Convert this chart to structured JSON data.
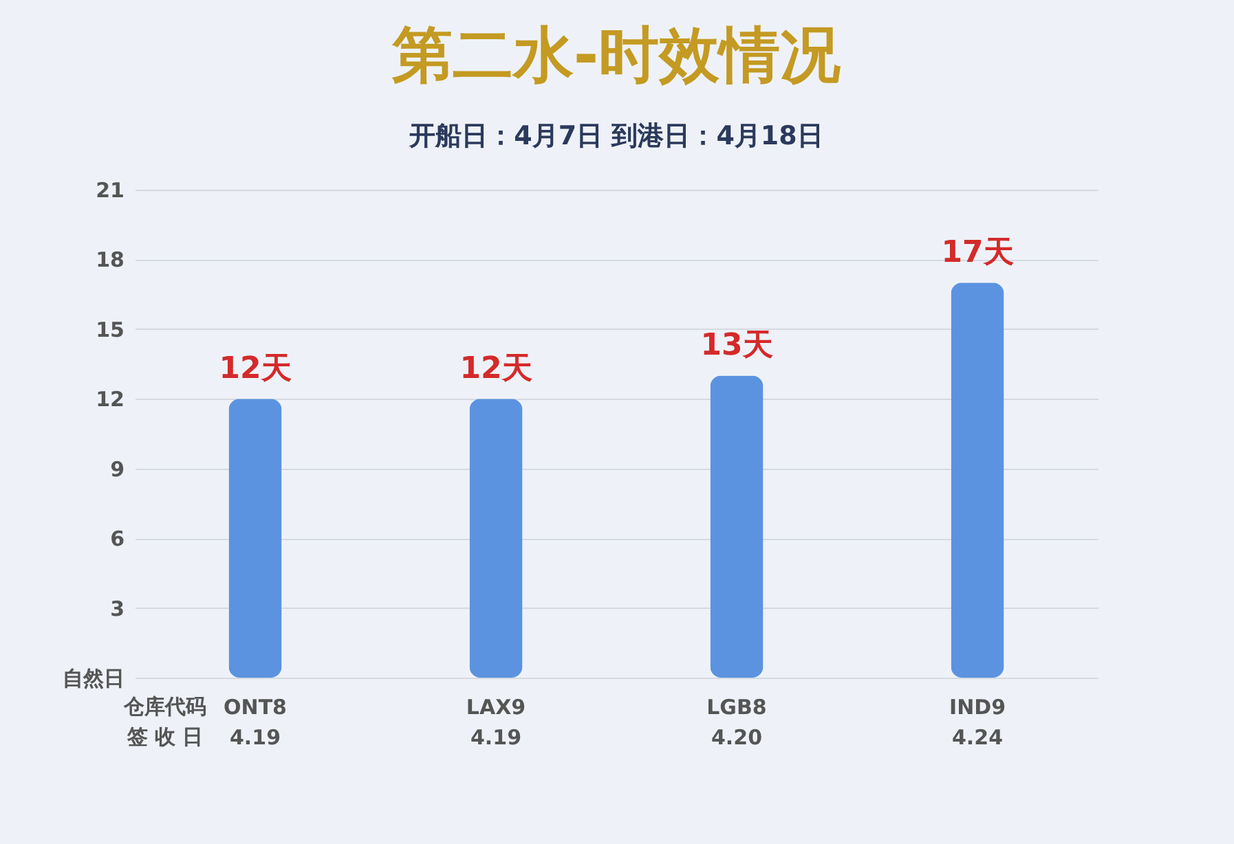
{
  "chart_data": {
    "type": "bar",
    "title": "第二水-时效情况",
    "subtitle": "开船日：4月7日        到港日：4月18日",
    "categories": [
      "ONT8\n4.19",
      "LAX9\n4.19",
      "LGB8\n4.20",
      "IND9\n4.24"
    ],
    "values": [
      12,
      12,
      13,
      17
    ],
    "value_labels": [
      "12天",
      "12天",
      "13天",
      "17天"
    ],
    "color": "#5b93e0",
    "ylim": [
      0,
      21
    ],
    "yticks": [
      {
        "value": 0,
        "label": "自然日"
      },
      3,
      6,
      9,
      12,
      15,
      18,
      21
    ],
    "grid": "y",
    "annotations": [
      "仓库代码",
      "签 收 日"
    ]
  }
}
